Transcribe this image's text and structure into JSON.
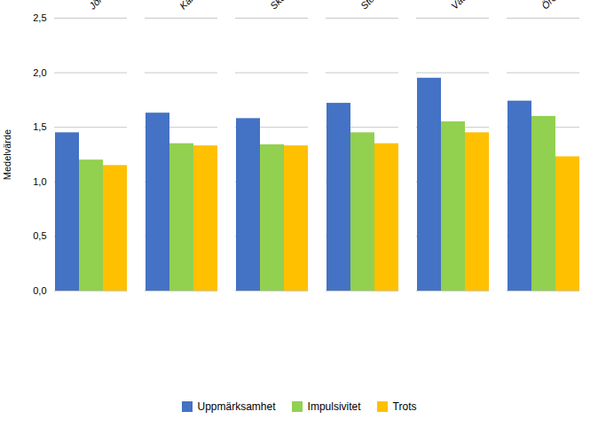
{
  "chart_data": {
    "type": "bar",
    "categories": [
      "Jönköpings län",
      "Kalmar län",
      "Skåne län",
      "Stockholms län",
      "Västra Götalands län",
      "Örebro län"
    ],
    "series": [
      {
        "name": "Uppmärksamhet",
        "color": "#4472C4",
        "values": [
          1.45,
          1.63,
          1.58,
          1.72,
          1.95,
          1.74
        ]
      },
      {
        "name": "Impulsivitet",
        "color": "#92D050",
        "values": [
          1.2,
          1.35,
          1.34,
          1.45,
          1.55,
          1.6
        ]
      },
      {
        "name": "Trots",
        "color": "#FFC000",
        "values": [
          1.15,
          1.33,
          1.33,
          1.35,
          1.45,
          1.23
        ]
      }
    ],
    "ylabel": "Medelvärde",
    "ylim": [
      0,
      2.5
    ],
    "yticks": [
      {
        "value": 0.0,
        "label": "0,0"
      },
      {
        "value": 0.5,
        "label": "0,5"
      },
      {
        "value": 1.0,
        "label": "1,0"
      },
      {
        "value": 1.5,
        "label": "1,5"
      },
      {
        "value": 2.0,
        "label": "2,0"
      },
      {
        "value": 2.5,
        "label": "2,5"
      }
    ],
    "grid": true,
    "legend": "bottom"
  }
}
